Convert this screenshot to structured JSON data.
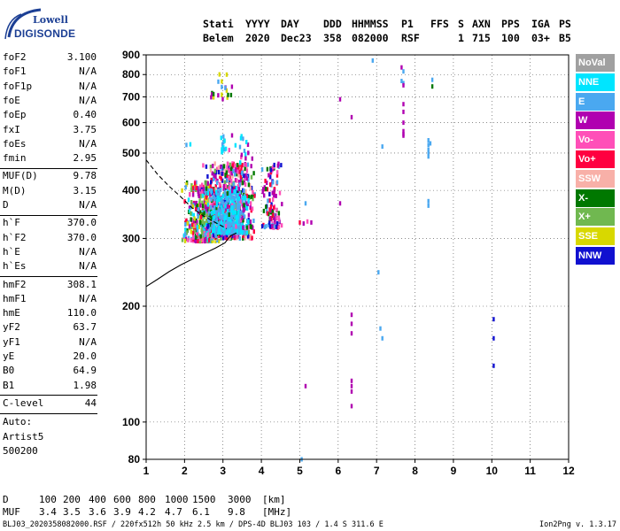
{
  "logo": {
    "line1": "Lowell",
    "line2": "DIGISONDE"
  },
  "header": {
    "row1": [
      "Stati",
      "YYYY",
      "DAY",
      "DDD",
      "HHMMSS",
      "P1",
      "FFS",
      "S",
      "AXN",
      "PPS",
      "IGA",
      "PS"
    ],
    "row2": [
      "Belem",
      "2020",
      "Dec23",
      "358",
      "082000",
      "RSF",
      "1",
      "715",
      "100",
      "03+",
      "B5"
    ]
  },
  "params": {
    "group1": [
      {
        "name": "foF2",
        "value": "3.100"
      },
      {
        "name": "foF1",
        "value": "N/A"
      },
      {
        "name": "foF1p",
        "value": "N/A"
      },
      {
        "name": "foE",
        "value": "N/A"
      },
      {
        "name": "foEp",
        "value": "0.40"
      },
      {
        "name": "fxI",
        "value": "3.75"
      },
      {
        "name": "foEs",
        "value": "N/A"
      },
      {
        "name": "fmin",
        "value": "2.95"
      }
    ],
    "group2": [
      {
        "name": "MUF(D)",
        "value": "9.78"
      },
      {
        "name": "M(D)",
        "value": "3.15"
      },
      {
        "name": "D",
        "value": "N/A"
      }
    ],
    "group3": [
      {
        "name": "h`F",
        "value": "370.0"
      },
      {
        "name": "h`F2",
        "value": "370.0"
      },
      {
        "name": "h`E",
        "value": "N/A"
      },
      {
        "name": "h`Es",
        "value": "N/A"
      }
    ],
    "group4": [
      {
        "name": "hmF2",
        "value": "308.1"
      },
      {
        "name": "hmF1",
        "value": "N/A"
      },
      {
        "name": "hmE",
        "value": "110.0"
      },
      {
        "name": "yF2",
        "value": "63.7"
      },
      {
        "name": "yF1",
        "value": "N/A"
      },
      {
        "name": "yE",
        "value": "20.0"
      },
      {
        "name": "B0",
        "value": "64.9"
      },
      {
        "name": "B1",
        "value": "1.98"
      }
    ],
    "group5": [
      {
        "name": "C-level",
        "value": "44"
      }
    ],
    "auto": [
      "Auto:",
      "Artist5",
      "500200"
    ]
  },
  "legend": [
    {
      "label": "NoVal",
      "color": "#a0a0a0"
    },
    {
      "label": "NNE",
      "color": "#00e5ff"
    },
    {
      "label": "E",
      "color": "#4aa8f0"
    },
    {
      "label": "W",
      "color": "#b000b0"
    },
    {
      "label": "Vo-",
      "color": "#ff4fb8"
    },
    {
      "label": "Vo+",
      "color": "#ff0040"
    },
    {
      "label": "SSW",
      "color": "#f8b0a8"
    },
    {
      "label": "X-",
      "color": "#007800"
    },
    {
      "label": "X+",
      "color": "#70b850"
    },
    {
      "label": "SSE",
      "color": "#d8d800"
    },
    {
      "label": "NNW",
      "color": "#1010d0"
    }
  ],
  "bottom": {
    "d_label": "D",
    "d_values": [
      "100",
      "200",
      "400",
      "600",
      "800",
      "1000",
      "1500",
      "3000",
      "[km]"
    ],
    "muf_label": "MUF",
    "muf_values": [
      "3.4",
      "3.5",
      "3.6",
      "3.9",
      "4.2",
      "4.7",
      "6.1",
      "9.8",
      "[MHz]"
    ],
    "footer_left": "BLJ03_2020358082000.RSF / 220fx512h 50 kHz 2.5 km / DPS-4D BLJ03 103 / 1.4 S 311.6 E",
    "footer_right": "Ion2Png v. 1.3.17"
  },
  "chart_data": {
    "type": "scatter",
    "title": "",
    "xlabel": "",
    "ylabel": "",
    "xlim": [
      1,
      12
    ],
    "ylim": [
      80,
      900
    ],
    "yscale": "log",
    "xticks": [
      "1",
      "2",
      "3",
      "4",
      "5",
      "6",
      "7",
      "8",
      "9",
      "10",
      "11",
      "12"
    ],
    "yticks": [
      "80",
      "100",
      "200",
      "300",
      "400",
      "500",
      "600",
      "700",
      "800",
      "900"
    ],
    "grid": "dotted",
    "clusters": [
      {
        "fmin": 1.9,
        "fmax": 3.1,
        "hmin": 295,
        "hmax": 420,
        "count": 380,
        "colors": [
          "W",
          "Vo-",
          "Vo+",
          "X-",
          "X+",
          "SSE",
          "E",
          "NNE"
        ]
      },
      {
        "fmin": 2.4,
        "fmax": 3.9,
        "hmin": 300,
        "hmax": 470,
        "count": 520,
        "colors": [
          "W",
          "Vo-",
          "Vo+",
          "X-",
          "X+",
          "E",
          "SSW",
          "NNW"
        ]
      },
      {
        "fmin": 2.6,
        "fmax": 3.7,
        "hmin": 310,
        "hmax": 400,
        "count": 300,
        "colors": [
          "E",
          "NNE"
        ]
      },
      {
        "fmin": 3.0,
        "fmax": 3.9,
        "hmin": 320,
        "hmax": 560,
        "count": 90,
        "colors": [
          "E",
          "NNE",
          "X-",
          "W",
          "Vo-"
        ]
      },
      {
        "fmin": 4.0,
        "fmax": 4.6,
        "hmin": 320,
        "hmax": 470,
        "count": 110,
        "colors": [
          "W",
          "Vo-",
          "X-",
          "E",
          "NNW",
          "Vo+"
        ]
      },
      {
        "fmin": 2.6,
        "fmax": 3.3,
        "hmin": 690,
        "hmax": 810,
        "count": 20,
        "colors": [
          "X-",
          "SSE",
          "W",
          "E"
        ]
      },
      {
        "fmin": 2.9,
        "fmax": 3.1,
        "hmin": 500,
        "hmax": 560,
        "count": 12,
        "colors": [
          "E",
          "NNE"
        ]
      }
    ],
    "points": [
      {
        "x": 5.0,
        "y": 330,
        "c": "Vo+"
      },
      {
        "x": 5.1,
        "y": 328,
        "c": "W"
      },
      {
        "x": 5.2,
        "y": 332,
        "c": "Vo-"
      },
      {
        "x": 5.3,
        "y": 330,
        "c": "W"
      },
      {
        "x": 5.15,
        "y": 370,
        "c": "E"
      },
      {
        "x": 5.15,
        "y": 124,
        "c": "W"
      },
      {
        "x": 5.05,
        "y": 80,
        "c": "E"
      },
      {
        "x": 6.05,
        "y": 690,
        "c": "W"
      },
      {
        "x": 6.05,
        "y": 370,
        "c": "W"
      },
      {
        "x": 6.35,
        "y": 620,
        "c": "W"
      },
      {
        "x": 6.35,
        "y": 190,
        "c": "W"
      },
      {
        "x": 6.35,
        "y": 180,
        "c": "W"
      },
      {
        "x": 6.35,
        "y": 170,
        "c": "W"
      },
      {
        "x": 6.35,
        "y": 128,
        "c": "W"
      },
      {
        "x": 6.35,
        "y": 124,
        "c": "W"
      },
      {
        "x": 6.35,
        "y": 120,
        "c": "W"
      },
      {
        "x": 6.35,
        "y": 110,
        "c": "W"
      },
      {
        "x": 6.9,
        "y": 870,
        "c": "E"
      },
      {
        "x": 7.05,
        "y": 245,
        "c": "E"
      },
      {
        "x": 7.1,
        "y": 175,
        "c": "E"
      },
      {
        "x": 7.15,
        "y": 165,
        "c": "E"
      },
      {
        "x": 7.15,
        "y": 520,
        "c": "E"
      },
      {
        "x": 7.65,
        "y": 835,
        "c": "W"
      },
      {
        "x": 7.7,
        "y": 815,
        "c": "E"
      },
      {
        "x": 7.65,
        "y": 770,
        "c": "E"
      },
      {
        "x": 7.7,
        "y": 760,
        "c": "E"
      },
      {
        "x": 7.7,
        "y": 750,
        "c": "W"
      },
      {
        "x": 7.7,
        "y": 670,
        "c": "W"
      },
      {
        "x": 7.7,
        "y": 640,
        "c": "W"
      },
      {
        "x": 7.7,
        "y": 600,
        "c": "W"
      },
      {
        "x": 7.7,
        "y": 570,
        "c": "W"
      },
      {
        "x": 7.7,
        "y": 560,
        "c": "W"
      },
      {
        "x": 7.7,
        "y": 555,
        "c": "W"
      },
      {
        "x": 8.35,
        "y": 540,
        "c": "E"
      },
      {
        "x": 8.35,
        "y": 525,
        "c": "E"
      },
      {
        "x": 8.35,
        "y": 510,
        "c": "E"
      },
      {
        "x": 8.35,
        "y": 500,
        "c": "E"
      },
      {
        "x": 8.35,
        "y": 490,
        "c": "E"
      },
      {
        "x": 8.4,
        "y": 530,
        "c": "E"
      },
      {
        "x": 8.35,
        "y": 375,
        "c": "E"
      },
      {
        "x": 8.35,
        "y": 365,
        "c": "E"
      },
      {
        "x": 8.45,
        "y": 775,
        "c": "E"
      },
      {
        "x": 8.45,
        "y": 745,
        "c": "X-"
      },
      {
        "x": 10.05,
        "y": 185,
        "c": "NNW"
      },
      {
        "x": 10.05,
        "y": 165,
        "c": "NNW"
      },
      {
        "x": 10.05,
        "y": 140,
        "c": "NNW"
      },
      {
        "x": 2.05,
        "y": 525,
        "c": "E"
      },
      {
        "x": 2.15,
        "y": 527,
        "c": "NNE"
      }
    ],
    "lines": [
      {
        "style": "dashed",
        "points": [
          [
            1.0,
            480
          ],
          [
            1.3,
            440
          ],
          [
            1.6,
            410
          ],
          [
            1.9,
            385
          ],
          [
            2.2,
            360
          ],
          [
            2.5,
            343
          ],
          [
            2.8,
            330
          ],
          [
            3.1,
            318
          ]
        ]
      },
      {
        "style": "solid",
        "points": [
          [
            1.0,
            225
          ],
          [
            1.3,
            235
          ],
          [
            1.6,
            246
          ],
          [
            1.9,
            256
          ],
          [
            2.2,
            265
          ],
          [
            2.5,
            274
          ],
          [
            2.8,
            283
          ],
          [
            3.05,
            292
          ],
          [
            3.2,
            305
          ],
          [
            3.35,
            310
          ]
        ]
      }
    ]
  }
}
